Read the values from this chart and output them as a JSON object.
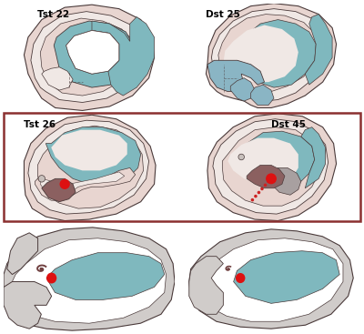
{
  "background": "#ffffff",
  "labels": {
    "tl": "Tst 22",
    "tr": "Dst 25",
    "ml": "Tst 26",
    "mr": "Dst 45"
  },
  "colors": {
    "outer_skin": "#e8d5d0",
    "outer_skin2": "#d4bfbc",
    "inner_cream": "#f0e8e5",
    "teal_band": "#7fb8be",
    "teal_dark": "#5a9ea8",
    "teal_light": "#a0cdd1",
    "blue_fill": "#8ab5c4",
    "dark_outline": "#4a3a3a",
    "red_dot": "#dd1111",
    "red_dotted": "#cc2222",
    "brown_structure": "#8b6060",
    "brown_dark": "#704040",
    "gray_structure": "#a8a0a0",
    "gray_light": "#c8c0bc",
    "box_border": "#8b3030",
    "white": "#ffffff",
    "light_gray": "#d0ccca",
    "body_gray": "#d8d5d2",
    "skin_pink": "#ddc8c4"
  }
}
